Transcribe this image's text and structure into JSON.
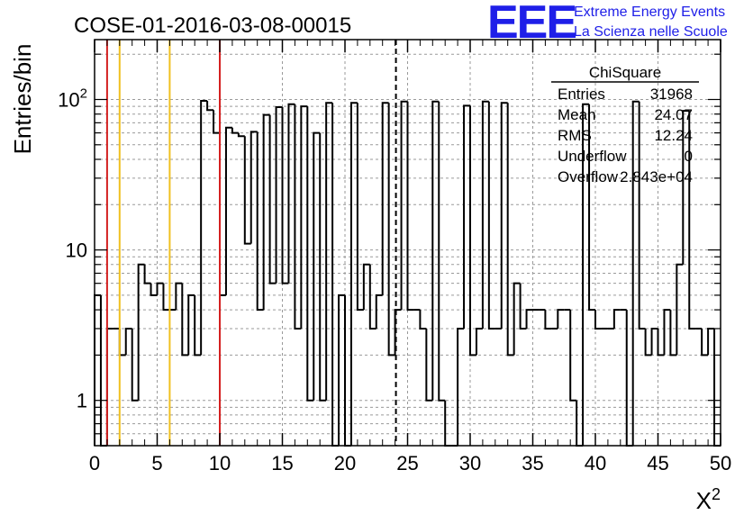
{
  "chart_data": {
    "type": "histogram",
    "title": "COSE-01-2016-03-08-00015",
    "xlabel": "X²",
    "ylabel": "Entries/bin",
    "xlim": [
      0,
      50
    ],
    "ylim": [
      0.5,
      250
    ],
    "y_scale": "log",
    "grid": true,
    "bin_width": 0.5,
    "x_ticks": [
      "0",
      "5",
      "10",
      "15",
      "20",
      "25",
      "30",
      "35",
      "40",
      "45",
      "50"
    ],
    "y_ticks": [
      {
        "value": 1,
        "label": "1"
      },
      {
        "value": 10,
        "label": "10"
      },
      {
        "value": 100,
        "label": "10",
        "sup": "2"
      }
    ],
    "bin_values": [
      5,
      0,
      3,
      3,
      2,
      3,
      1,
      8,
      6,
      5,
      6,
      4,
      4,
      6,
      2,
      5,
      2,
      98,
      85,
      60,
      5,
      65,
      60,
      57,
      11,
      61,
      4,
      79,
      6,
      89,
      6,
      93,
      3,
      90,
      1,
      60,
      1,
      95,
      0,
      5,
      0,
      95,
      4,
      8,
      3,
      5,
      95,
      2,
      4,
      97,
      4,
      4,
      3,
      1,
      97,
      1,
      0,
      0,
      3,
      91,
      2,
      3,
      97,
      3,
      3,
      95,
      2,
      6,
      3,
      4,
      4,
      4,
      3,
      3,
      4,
      4,
      1,
      0,
      93,
      4,
      3,
      3,
      3,
      4,
      4,
      0,
      97,
      3,
      2,
      3,
      2,
      4,
      2,
      8,
      84,
      3,
      3,
      2,
      3,
      0
    ],
    "vertical_lines": [
      {
        "x": 1,
        "color": "#d42020",
        "style": "solid"
      },
      {
        "x": 2,
        "color": "#f0c020",
        "style": "solid"
      },
      {
        "x": 6,
        "color": "#f0c020",
        "style": "solid"
      },
      {
        "x": 10,
        "color": "#d42020",
        "style": "solid"
      },
      {
        "x": 24.07,
        "color": "#000000",
        "style": "dashed"
      }
    ],
    "stats_box": {
      "name": "ChiSquare",
      "rows": [
        {
          "label": "Entries",
          "value": "31968"
        },
        {
          "label": "Mean",
          "value": "24.07"
        },
        {
          "label": "RMS",
          "value": "12.24"
        },
        {
          "label": "Underflow",
          "value": "0"
        },
        {
          "label": "Overflow",
          "value": "2.843e+04"
        }
      ]
    }
  },
  "logo": {
    "mark": "EEE",
    "line1": "Extreme Energy Events",
    "line2": "La Scienza nelle Scuole",
    "color": "#1f1fe8"
  },
  "colors": {
    "frame": "#000000",
    "grid": "#9a9a9a",
    "histogram": "#000000"
  }
}
